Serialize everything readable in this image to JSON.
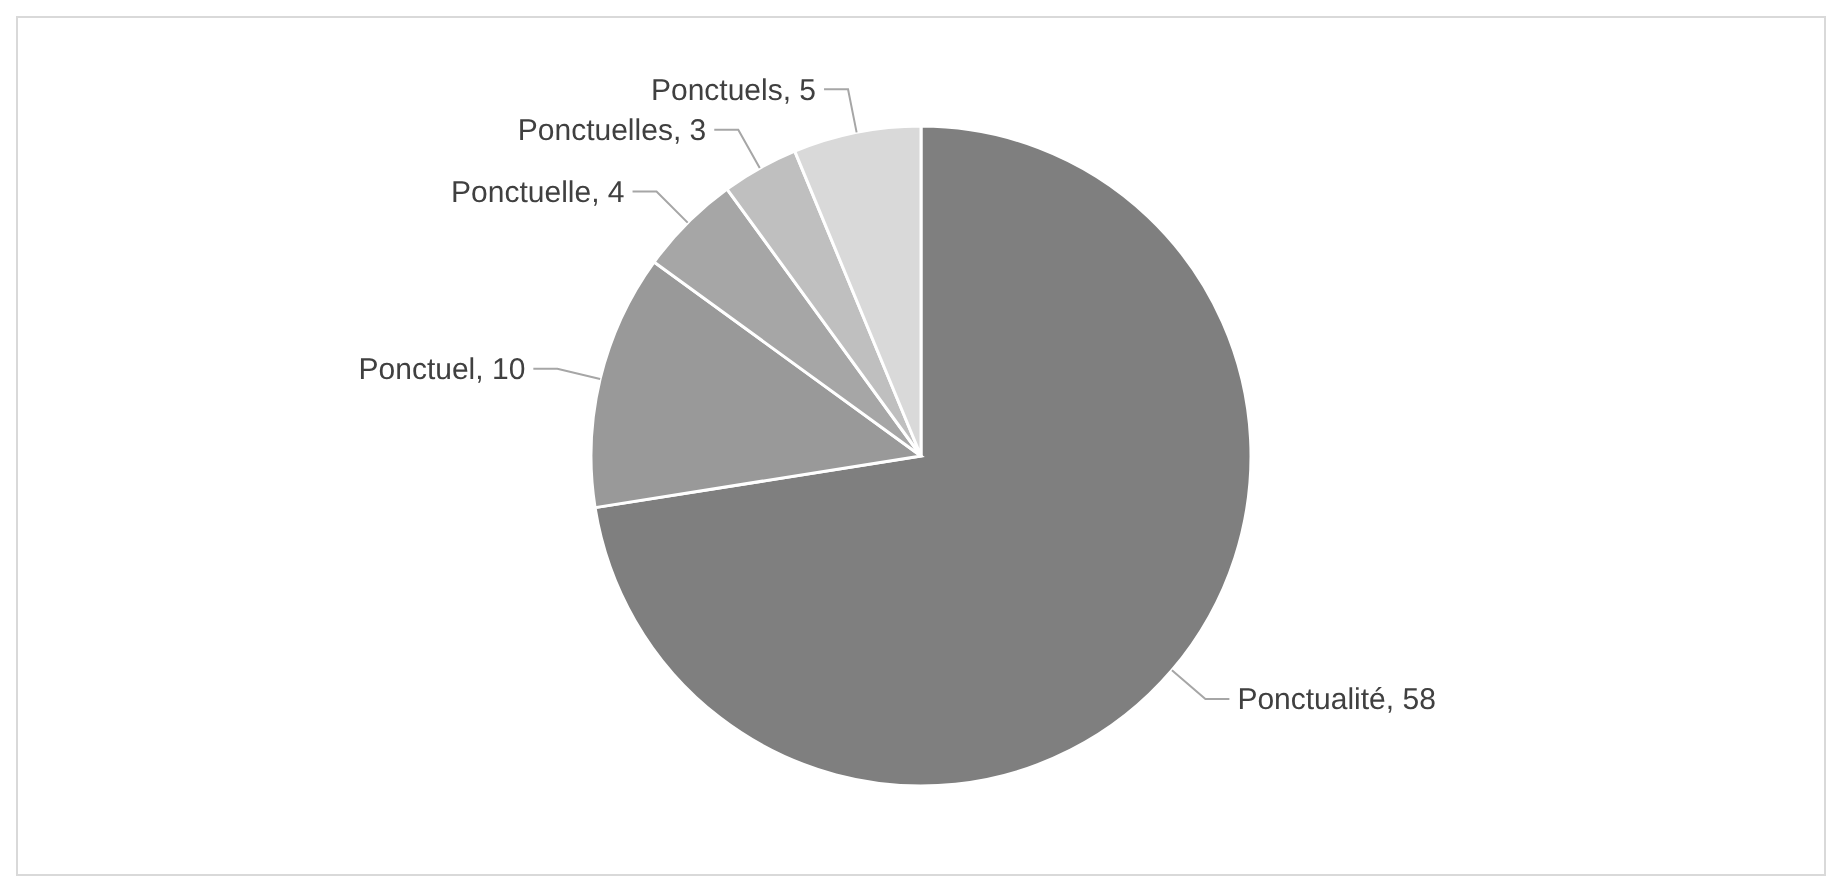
{
  "chart_data": {
    "type": "pie",
    "categories": [
      "Ponctualité",
      "Ponctuel",
      "Ponctuelle",
      "Ponctuelles",
      "Ponctuels"
    ],
    "values": [
      58,
      10,
      4,
      3,
      5
    ],
    "value_labels": [
      ", 58",
      ", 10",
      ", 4",
      ", 3",
      ", 5"
    ],
    "colors": [
      "#7f7f7f",
      "#999999",
      "#a6a6a6",
      "#bfbfbf",
      "#d9d9d9"
    ],
    "legend": false
  }
}
